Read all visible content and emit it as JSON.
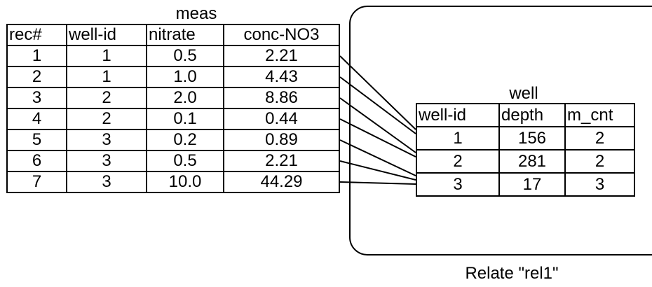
{
  "meas": {
    "title": "meas",
    "headers": [
      "rec#",
      "well-id",
      "nitrate",
      "conc-NO3"
    ],
    "rows": [
      [
        "1",
        "1",
        "0.5",
        "2.21"
      ],
      [
        "2",
        "1",
        "1.0",
        "4.43"
      ],
      [
        "3",
        "2",
        "2.0",
        "8.86"
      ],
      [
        "4",
        "2",
        "0.1",
        "0.44"
      ],
      [
        "5",
        "3",
        "0.2",
        "0.89"
      ],
      [
        "6",
        "3",
        "0.5",
        "2.21"
      ],
      [
        "7",
        "3",
        "10.0",
        "44.29"
      ]
    ]
  },
  "well": {
    "title": "well",
    "headers": [
      "well-id",
      "depth",
      "m_cnt"
    ],
    "rows": [
      [
        "1",
        "156",
        "2"
      ],
      [
        "2",
        "281",
        "2"
      ],
      [
        "3",
        "17",
        "3"
      ]
    ]
  },
  "relate": {
    "caption": "Relate \"rel1\""
  },
  "links": [
    {
      "from_row": 1,
      "to_row": 1
    },
    {
      "from_row": 2,
      "to_row": 1
    },
    {
      "from_row": 3,
      "to_row": 2
    },
    {
      "from_row": 4,
      "to_row": 2
    },
    {
      "from_row": 5,
      "to_row": 3
    },
    {
      "from_row": 6,
      "to_row": 3
    },
    {
      "from_row": 7,
      "to_row": 3
    }
  ]
}
